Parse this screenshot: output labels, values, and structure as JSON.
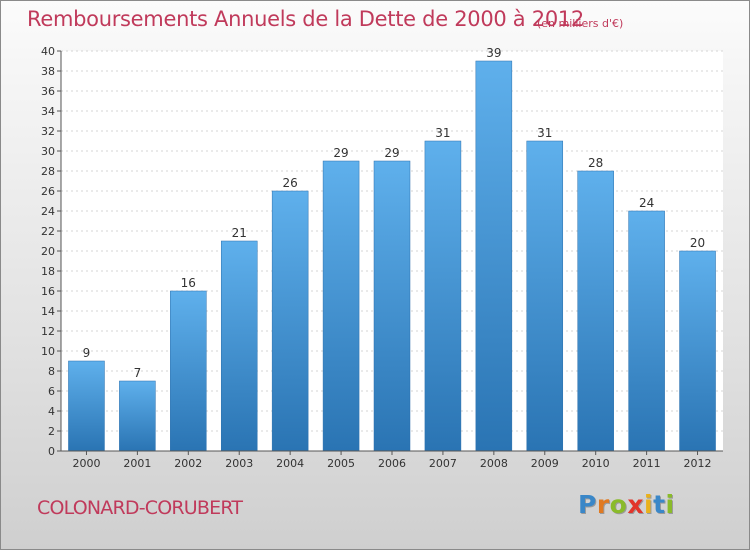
{
  "header": {
    "title": "Remboursements Annuels de la Dette de 2000 à 2012",
    "unit": "(en milliers d'€)"
  },
  "footer": {
    "commune": "COLONARD-CORUBERT",
    "logo_letters": [
      {
        "char": "P",
        "color": "#3a87c8"
      },
      {
        "char": "r",
        "color": "#e07a22"
      },
      {
        "char": "o",
        "color": "#8abb2a"
      },
      {
        "char": "x",
        "color": "#e2352b"
      },
      {
        "char": "i",
        "color": "#e9b11b"
      },
      {
        "char": "t",
        "color": "#3a87c8"
      },
      {
        "char": "i",
        "color": "#8abb2a"
      }
    ]
  },
  "chart_data": {
    "type": "bar",
    "title": "Remboursements Annuels de la Dette de 2000 à 2012",
    "xlabel": "",
    "ylabel": "",
    "categories": [
      "2000",
      "2001",
      "2002",
      "2003",
      "2004",
      "2005",
      "2006",
      "2007",
      "2008",
      "2009",
      "2010",
      "2011",
      "2012"
    ],
    "values": [
      9,
      7,
      16,
      21,
      26,
      29,
      29,
      31,
      39,
      31,
      28,
      24,
      20
    ],
    "ylim": [
      0,
      40
    ],
    "yticks": [
      0,
      2,
      4,
      6,
      8,
      10,
      12,
      14,
      16,
      18,
      20,
      22,
      24,
      26,
      28,
      30,
      32,
      34,
      36,
      38,
      40
    ],
    "grid": true,
    "bar_color": "#3f97db",
    "legend": "none"
  }
}
